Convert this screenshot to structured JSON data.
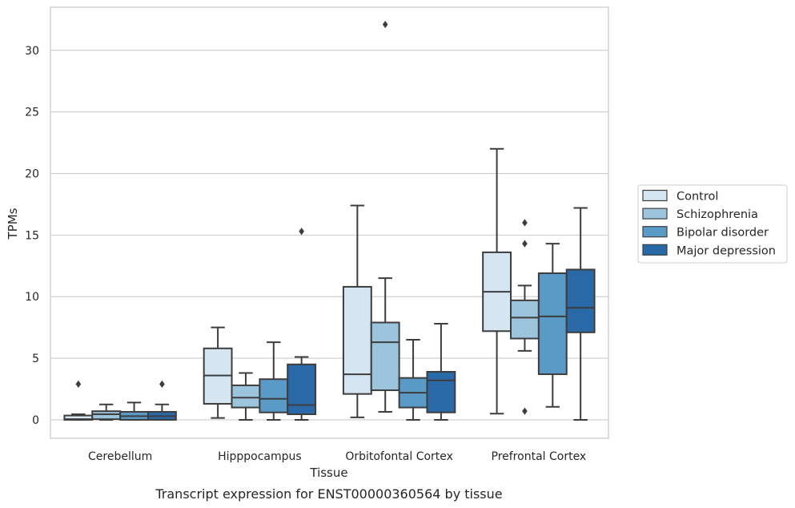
{
  "caption": "Transcript expression for ENST00000360564 by tissue",
  "chart_data": {
    "type": "box",
    "xlabel": "Tissue",
    "ylabel": "TPMs",
    "ylim": [
      -1.5,
      33.5
    ],
    "yticks": [
      0,
      5,
      10,
      15,
      20,
      25,
      30
    ],
    "grid": "horizontal",
    "legend_position": "right",
    "categories": [
      "Cerebellum",
      "Hipppocampus",
      "Orbitofontal Cortex",
      "Prefrontal Cortex"
    ],
    "series": [
      {
        "name": "Control",
        "color": "#d6e5f2",
        "boxes": [
          {
            "min": 0,
            "q1": 0,
            "median": 0.05,
            "q3": 0.35,
            "max": 0.45,
            "outliers": [
              2.9
            ]
          },
          {
            "min": 0.15,
            "q1": 1.3,
            "median": 3.6,
            "q3": 5.8,
            "max": 7.5,
            "outliers": []
          },
          {
            "min": 0.2,
            "q1": 2.1,
            "median": 3.7,
            "q3": 10.8,
            "max": 17.4,
            "outliers": []
          },
          {
            "min": 0.5,
            "q1": 7.2,
            "median": 10.4,
            "q3": 13.6,
            "max": 22.0,
            "outliers": []
          }
        ]
      },
      {
        "name": "Schizophrenia",
        "color": "#9cc5dd",
        "boxes": [
          {
            "min": 0,
            "q1": 0.05,
            "median": 0.45,
            "q3": 0.7,
            "max": 1.25,
            "outliers": []
          },
          {
            "min": 0,
            "q1": 1.0,
            "median": 1.8,
            "q3": 2.8,
            "max": 3.8,
            "outliers": []
          },
          {
            "min": 0.65,
            "q1": 2.4,
            "median": 6.3,
            "q3": 7.9,
            "max": 11.5,
            "outliers": [
              32.1
            ]
          },
          {
            "min": 5.6,
            "q1": 6.6,
            "median": 8.3,
            "q3": 9.7,
            "max": 10.9,
            "outliers": [
              16.0,
              14.3,
              0.7
            ]
          }
        ]
      },
      {
        "name": "Bipolar disorder",
        "color": "#5a9ac7",
        "boxes": [
          {
            "min": 0,
            "q1": 0,
            "median": 0.3,
            "q3": 0.65,
            "max": 1.4,
            "outliers": []
          },
          {
            "min": 0,
            "q1": 0.6,
            "median": 1.7,
            "q3": 3.3,
            "max": 6.3,
            "outliers": []
          },
          {
            "min": 0,
            "q1": 1.0,
            "median": 2.2,
            "q3": 3.4,
            "max": 6.5,
            "outliers": []
          },
          {
            "min": 1.05,
            "q1": 3.7,
            "median": 8.4,
            "q3": 11.9,
            "max": 14.3,
            "outliers": []
          }
        ]
      },
      {
        "name": "Major depression",
        "color": "#2a69a8",
        "boxes": [
          {
            "min": 0,
            "q1": 0,
            "median": 0.3,
            "q3": 0.65,
            "max": 1.25,
            "outliers": [
              2.9
            ]
          },
          {
            "min": 0,
            "q1": 0.45,
            "median": 1.2,
            "q3": 4.5,
            "max": 5.1,
            "outliers": [
              15.3
            ]
          },
          {
            "min": 0,
            "q1": 0.6,
            "median": 3.2,
            "q3": 3.9,
            "max": 7.8,
            "outliers": []
          },
          {
            "min": 0,
            "q1": 7.1,
            "median": 9.1,
            "q3": 12.2,
            "max": 17.2,
            "outliers": []
          }
        ]
      }
    ]
  }
}
